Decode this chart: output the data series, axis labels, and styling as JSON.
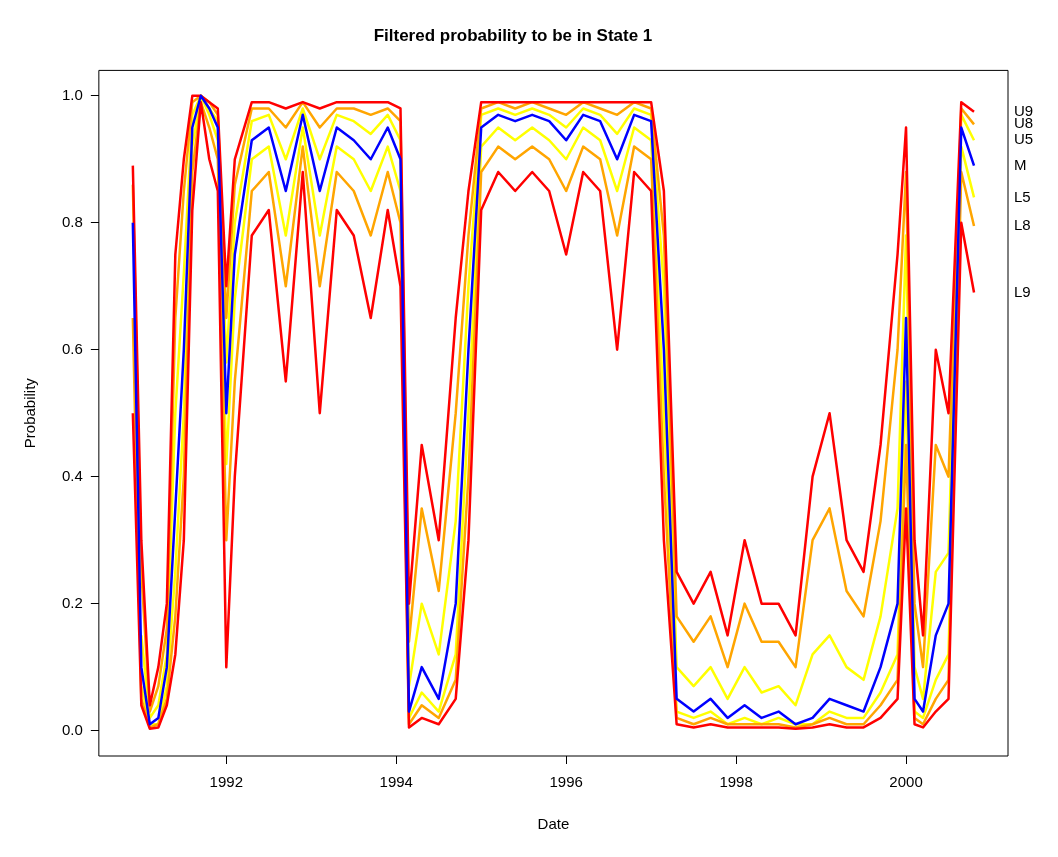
{
  "chart_data": {
    "type": "line",
    "title": "Filtered probability to be in State 1",
    "xlabel": "Date",
    "ylabel": "Probability",
    "x": [
      1990.9,
      1991.0,
      1991.1,
      1991.2,
      1991.3,
      1991.4,
      1991.5,
      1991.6,
      1991.7,
      1991.8,
      1991.9,
      1992.0,
      1992.1,
      1992.3,
      1992.5,
      1992.7,
      1992.9,
      1993.1,
      1993.3,
      1993.5,
      1993.7,
      1993.9,
      1994.05,
      1994.15,
      1994.3,
      1994.5,
      1994.7,
      1994.85,
      1995.0,
      1995.2,
      1995.4,
      1995.6,
      1995.8,
      1996.0,
      1996.2,
      1996.4,
      1996.6,
      1996.8,
      1997.0,
      1997.15,
      1997.3,
      1997.5,
      1997.7,
      1997.9,
      1998.1,
      1998.3,
      1998.5,
      1998.7,
      1998.9,
      1999.1,
      1999.3,
      1999.5,
      1999.7,
      1999.9,
      2000.0,
      2000.1,
      2000.2,
      2000.35,
      2000.5,
      2000.65,
      2000.8
    ],
    "series": [
      {
        "name": "U9",
        "color": "#ff0000",
        "values": [
          0.89,
          0.3,
          0.04,
          0.1,
          0.2,
          0.75,
          0.9,
          1.0,
          1.0,
          0.99,
          0.98,
          0.7,
          0.9,
          0.99,
          0.99,
          0.98,
          0.99,
          0.98,
          0.99,
          0.99,
          0.99,
          0.99,
          0.98,
          0.2,
          0.45,
          0.3,
          0.65,
          0.85,
          0.99,
          0.99,
          0.99,
          0.99,
          0.99,
          0.99,
          0.99,
          0.99,
          0.99,
          0.99,
          0.99,
          0.85,
          0.25,
          0.2,
          0.25,
          0.15,
          0.3,
          0.2,
          0.2,
          0.15,
          0.4,
          0.5,
          0.3,
          0.25,
          0.45,
          0.75,
          0.95,
          0.3,
          0.15,
          0.6,
          0.5,
          0.99,
          0.975
        ]
      },
      {
        "name": "U8",
        "color": "#ffa500",
        "values": [
          0.86,
          0.25,
          0.03,
          0.07,
          0.16,
          0.65,
          0.85,
          0.99,
          1.0,
          0.99,
          0.97,
          0.65,
          0.86,
          0.98,
          0.98,
          0.95,
          0.99,
          0.95,
          0.98,
          0.98,
          0.97,
          0.98,
          0.96,
          0.14,
          0.35,
          0.22,
          0.5,
          0.78,
          0.98,
          0.99,
          0.98,
          0.99,
          0.98,
          0.97,
          0.99,
          0.98,
          0.97,
          0.99,
          0.98,
          0.78,
          0.18,
          0.14,
          0.18,
          0.1,
          0.2,
          0.14,
          0.14,
          0.1,
          0.3,
          0.35,
          0.22,
          0.18,
          0.33,
          0.6,
          0.88,
          0.2,
          0.1,
          0.45,
          0.4,
          0.98,
          0.955
        ]
      },
      {
        "name": "U5",
        "color": "#ffff00",
        "values": [
          null,
          0.15,
          0.02,
          0.04,
          0.12,
          0.5,
          0.72,
          0.97,
          1.0,
          0.98,
          0.96,
          0.58,
          0.8,
          0.96,
          0.97,
          0.9,
          0.98,
          0.9,
          0.97,
          0.96,
          0.94,
          0.97,
          0.93,
          0.07,
          0.2,
          0.12,
          0.33,
          0.7,
          0.97,
          0.98,
          0.97,
          0.98,
          0.97,
          0.95,
          0.98,
          0.97,
          0.94,
          0.98,
          0.97,
          0.7,
          0.1,
          0.07,
          0.1,
          0.05,
          0.1,
          0.06,
          0.07,
          0.04,
          0.12,
          0.15,
          0.1,
          0.08,
          0.18,
          0.35,
          0.78,
          0.1,
          0.05,
          0.25,
          0.28,
          0.97,
          0.93
        ]
      },
      {
        "name": "M",
        "color": "#0000ff",
        "values": [
          0.8,
          0.1,
          0.01,
          0.02,
          0.1,
          0.35,
          0.6,
          0.95,
          1.0,
          0.98,
          0.95,
          0.5,
          0.75,
          0.93,
          0.95,
          0.85,
          0.97,
          0.85,
          0.95,
          0.93,
          0.9,
          0.95,
          0.9,
          0.03,
          0.1,
          0.05,
          0.2,
          0.6,
          0.95,
          0.97,
          0.96,
          0.97,
          0.96,
          0.93,
          0.97,
          0.96,
          0.9,
          0.97,
          0.96,
          0.6,
          0.05,
          0.03,
          0.05,
          0.02,
          0.04,
          0.02,
          0.03,
          0.01,
          0.02,
          0.05,
          0.04,
          0.03,
          0.1,
          0.2,
          0.65,
          0.05,
          0.03,
          0.15,
          0.2,
          0.95,
          0.89
        ]
      },
      {
        "name": "L5",
        "color": "#ffff00",
        "values": [
          null,
          0.07,
          0.01,
          0.01,
          0.07,
          0.25,
          0.5,
          0.92,
          1.0,
          0.97,
          0.93,
          0.42,
          0.68,
          0.9,
          0.92,
          0.78,
          0.95,
          0.78,
          0.92,
          0.9,
          0.85,
          0.92,
          0.85,
          0.02,
          0.06,
          0.03,
          0.12,
          0.5,
          0.92,
          0.95,
          0.93,
          0.95,
          0.93,
          0.9,
          0.95,
          0.93,
          0.85,
          0.95,
          0.93,
          0.5,
          0.03,
          0.02,
          0.03,
          0.01,
          0.02,
          0.01,
          0.02,
          0.01,
          0.01,
          0.03,
          0.02,
          0.02,
          0.06,
          0.12,
          0.55,
          0.03,
          0.02,
          0.08,
          0.12,
          0.92,
          0.84
        ]
      },
      {
        "name": "L8",
        "color": "#ffa500",
        "values": [
          0.65,
          0.05,
          0.005,
          0.01,
          0.05,
          0.18,
          0.4,
          0.88,
          0.99,
          0.95,
          0.9,
          0.3,
          0.55,
          0.85,
          0.88,
          0.7,
          0.92,
          0.7,
          0.88,
          0.85,
          0.78,
          0.88,
          0.8,
          0.01,
          0.04,
          0.02,
          0.08,
          0.4,
          0.88,
          0.92,
          0.9,
          0.92,
          0.9,
          0.85,
          0.92,
          0.9,
          0.78,
          0.92,
          0.9,
          0.4,
          0.02,
          0.01,
          0.02,
          0.01,
          0.01,
          0.01,
          0.01,
          0.005,
          0.01,
          0.02,
          0.01,
          0.01,
          0.04,
          0.08,
          0.45,
          0.02,
          0.01,
          0.05,
          0.08,
          0.88,
          0.795
        ]
      },
      {
        "name": "L9",
        "color": "#ff0000",
        "values": [
          0.5,
          0.04,
          0.003,
          0.005,
          0.04,
          0.12,
          0.3,
          0.82,
          0.99,
          0.9,
          0.85,
          0.1,
          0.4,
          0.78,
          0.82,
          0.55,
          0.88,
          0.5,
          0.82,
          0.78,
          0.65,
          0.82,
          0.7,
          0.005,
          0.02,
          0.01,
          0.05,
          0.3,
          0.82,
          0.88,
          0.85,
          0.88,
          0.85,
          0.75,
          0.88,
          0.85,
          0.6,
          0.88,
          0.85,
          0.3,
          0.01,
          0.005,
          0.01,
          0.005,
          0.005,
          0.005,
          0.005,
          0.003,
          0.005,
          0.01,
          0.005,
          0.005,
          0.02,
          0.05,
          0.35,
          0.01,
          0.005,
          0.03,
          0.05,
          0.8,
          0.69
        ]
      }
    ],
    "xlim": [
      1990.5,
      2001.2
    ],
    "xticks": [
      1992,
      1994,
      1996,
      1998,
      2000
    ],
    "ylim": [
      -0.04,
      1.04
    ],
    "yticks": [
      {
        "value": 0,
        "label": "0.0"
      },
      {
        "value": 0.2,
        "label": "0.2"
      },
      {
        "value": 0.4,
        "label": "0.4"
      },
      {
        "value": 0.6,
        "label": "0.6"
      },
      {
        "value": 0.8,
        "label": "0.8"
      },
      {
        "value": 1,
        "label": "1.0"
      }
    ],
    "grid": false,
    "legend": false,
    "marker": "none",
    "line_style": "solid"
  }
}
